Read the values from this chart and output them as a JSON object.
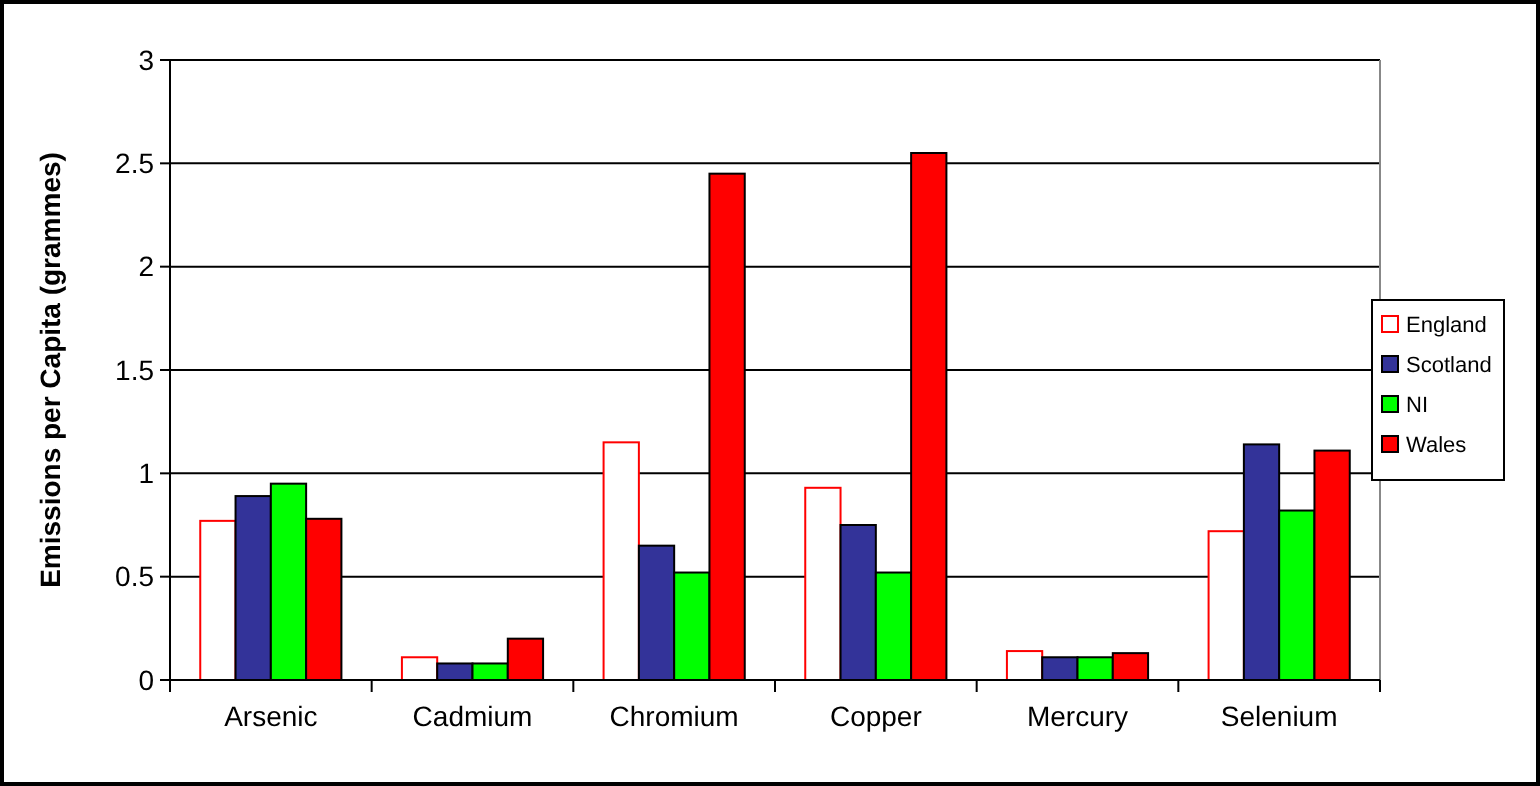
{
  "chart_data": {
    "type": "bar",
    "ylabel": "Emissions per Capita (grammes)",
    "categories": [
      "Arsenic",
      "Cadmium",
      "Chromium",
      "Copper",
      "Mercury",
      "Selenium"
    ],
    "series": [
      {
        "name": "England",
        "color": "#ffffff",
        "values": [
          0.77,
          0.11,
          1.15,
          0.93,
          0.14,
          0.72
        ]
      },
      {
        "name": "Scotland",
        "color": "#333399",
        "values": [
          0.89,
          0.08,
          0.65,
          0.75,
          0.11,
          1.14
        ]
      },
      {
        "name": "NI",
        "color": "#00ff00",
        "values": [
          0.95,
          0.08,
          0.52,
          0.52,
          0.11,
          0.82
        ]
      },
      {
        "name": "Wales",
        "color": "#ff0000",
        "values": [
          0.78,
          0.2,
          2.45,
          2.55,
          0.13,
          1.11
        ]
      }
    ],
    "ylim": [
      0,
      3
    ],
    "yticks": [
      0,
      0.5,
      1,
      1.5,
      2,
      2.5,
      3
    ],
    "grid": "y",
    "legend": "right"
  }
}
